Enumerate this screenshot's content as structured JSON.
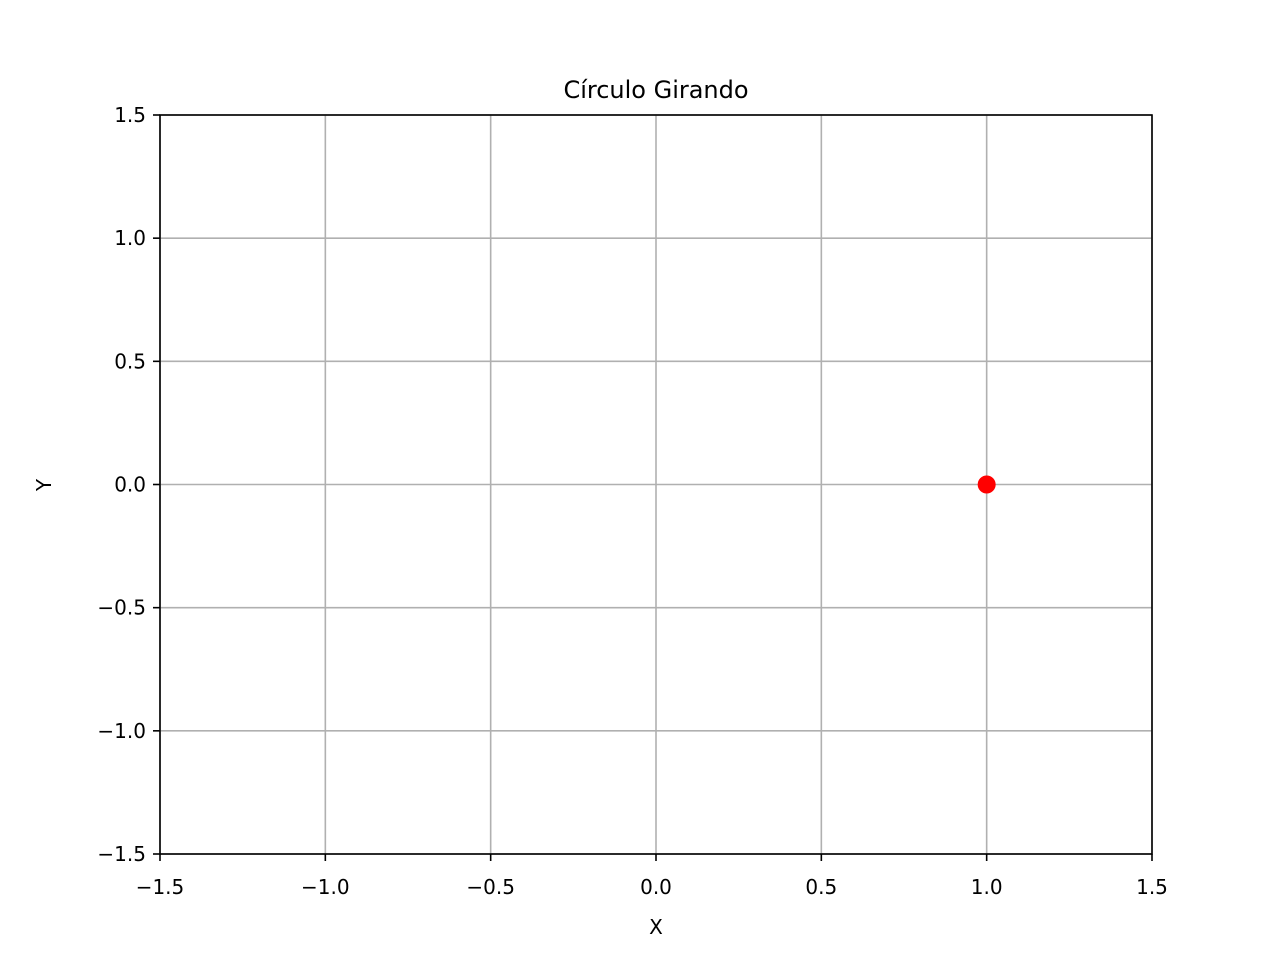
{
  "chart_data": {
    "type": "scatter",
    "title": "Círculo Girando",
    "xlabel": "X",
    "ylabel": "Y",
    "xlim": [
      -1.5,
      1.5
    ],
    "ylim": [
      -1.5,
      1.5
    ],
    "xticks": [
      -1.5,
      -1.0,
      -0.5,
      0.0,
      0.5,
      1.0,
      1.5
    ],
    "yticks": [
      -1.5,
      -1.0,
      -0.5,
      0.0,
      0.5,
      1.0,
      1.5
    ],
    "xtick_labels": [
      "−1.5",
      "−1.0",
      "−0.5",
      "0.0",
      "0.5",
      "1.0",
      "1.5"
    ],
    "ytick_labels": [
      "−1.5",
      "−1.0",
      "−0.5",
      "0.0",
      "0.5",
      "1.0",
      "1.5"
    ],
    "grid": true,
    "series": [
      {
        "points": [
          {
            "x": 1.0,
            "y": 0.0
          }
        ],
        "color": "#ff0000",
        "marker": "circle"
      }
    ]
  },
  "colors": {
    "grid": "#b0b0b0",
    "axes": "#000000",
    "background": "#ffffff"
  }
}
